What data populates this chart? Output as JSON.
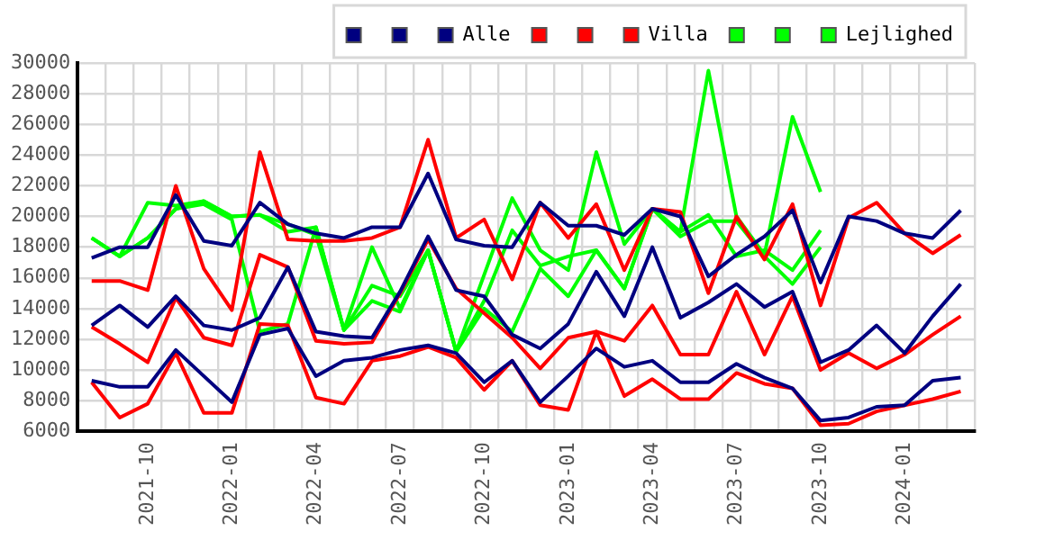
{
  "chart_data": {
    "type": "line",
    "categories": [
      null,
      null,
      "2021-10",
      null,
      null,
      "2022-01",
      null,
      null,
      "2022-04",
      null,
      null,
      "2022-07",
      null,
      null,
      "2022-10",
      null,
      null,
      "2023-01",
      null,
      null,
      "2023-04",
      null,
      null,
      "2023-07",
      null,
      null,
      "2023-10",
      null,
      null,
      "2024-01",
      null,
      null
    ],
    "ylim": [
      6000,
      30000
    ],
    "yticks": [
      6000,
      8000,
      10000,
      12000,
      14000,
      16000,
      18000,
      20000,
      22000,
      24000,
      26000,
      28000,
      30000
    ],
    "grid": true,
    "legend": "top right",
    "marker": "none",
    "line_style": "solid",
    "series": [
      {
        "color": "#000080",
        "values": [
          17300,
          18000,
          18000,
          21400,
          18400,
          18100,
          20900,
          19500,
          18900,
          18600,
          19300,
          19300,
          22800,
          18500,
          18100,
          18000,
          20900,
          19400,
          19400,
          18800,
          20500,
          20000,
          16100,
          17500,
          18700,
          20400,
          15700,
          20000,
          19700,
          18900,
          18600,
          20400
        ]
      },
      {
        "color": "#000080",
        "values": [
          12900,
          14200,
          12800,
          14800,
          12900,
          12600,
          13400,
          16700,
          12500,
          12200,
          12100,
          15100,
          18700,
          15200,
          14800,
          12300,
          11400,
          13000,
          16400,
          13500,
          18000,
          13400,
          14400,
          15600,
          14100,
          15100,
          10500,
          11300,
          12900,
          11100,
          13500,
          15600
        ]
      },
      {
        "name": "Alle",
        "color": "#000080",
        "values": [
          9300,
          8900,
          8900,
          11300,
          9600,
          7900,
          12300,
          12700,
          9600,
          10600,
          10800,
          11300,
          11600,
          11100,
          9200,
          10600,
          7900,
          9600,
          11400,
          10200,
          10600,
          9200,
          9200,
          10400,
          9500,
          8800,
          6700,
          6900,
          7600,
          7700,
          9300,
          9500
        ]
      },
      {
        "color": "#ff0000",
        "values": [
          15800,
          15800,
          15200,
          22000,
          16600,
          13900,
          24200,
          18500,
          18400,
          18400,
          18600,
          19300,
          25000,
          18600,
          19800,
          15900,
          20900,
          18600,
          20800,
          16500,
          20500,
          20300,
          15000,
          20000,
          17200,
          20800,
          14200,
          19900,
          20900,
          18900,
          17600,
          18800
        ]
      },
      {
        "color": "#ff0000",
        "values": [
          12800,
          11700,
          10500,
          14700,
          12100,
          11600,
          17500,
          16700,
          11900,
          11700,
          11800,
          15000,
          18500,
          15300,
          13700,
          12100,
          10100,
          12100,
          12500,
          11900,
          14200,
          11000,
          11000,
          15100,
          11000,
          14800,
          10000,
          11100,
          10100,
          11000,
          12300,
          13500
        ]
      },
      {
        "name": "Villa",
        "color": "#ff0000",
        "values": [
          9200,
          6900,
          7800,
          11100,
          7200,
          7200,
          13000,
          12900,
          8200,
          7800,
          10600,
          10900,
          11500,
          10800,
          8700,
          10600,
          7700,
          7400,
          12500,
          8300,
          9400,
          8100,
          8100,
          9800,
          9100,
          8800,
          6400,
          6500,
          7300,
          7700,
          8100,
          8600
        ]
      },
      {
        "color": "#00ff00",
        "values": [
          18600,
          17400,
          20900,
          20700,
          21000,
          20000,
          20100,
          19500,
          18800,
          12600,
          18000,
          14000,
          17800,
          11200,
          16200,
          21200,
          17800,
          16500,
          24200,
          18200,
          20500,
          19000,
          29500,
          20000,
          17500,
          26500,
          21600,
          null,
          null,
          null,
          null,
          null
        ]
      },
      {
        "color": "#00ff00",
        "values": [
          18600,
          17400,
          18600,
          20500,
          21000,
          20000,
          20100,
          19000,
          19300,
          12600,
          15500,
          14800,
          17800,
          11200,
          14500,
          19100,
          16800,
          17400,
          17800,
          15300,
          20500,
          19000,
          20100,
          17400,
          17800,
          16500,
          19100,
          null,
          null,
          null,
          null,
          null
        ]
      },
      {
        "name": "Lejlighed",
        "color": "#00ff00",
        "values": [
          18600,
          17400,
          18600,
          20500,
          20800,
          19800,
          12500,
          13000,
          19300,
          12600,
          14500,
          13800,
          17800,
          11200,
          14000,
          12500,
          16600,
          14800,
          17800,
          15300,
          20500,
          18700,
          19700,
          19700,
          17400,
          15600,
          18000,
          null,
          null,
          null,
          null,
          null
        ]
      }
    ]
  }
}
